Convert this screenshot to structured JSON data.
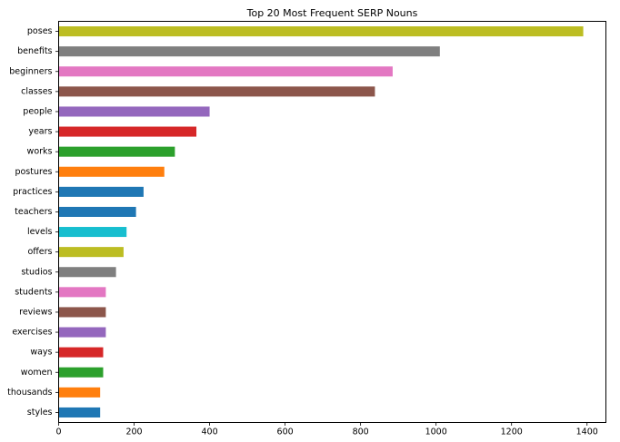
{
  "chart_data": {
    "type": "bar",
    "orientation": "horizontal",
    "title": "Top 20 Most Frequent SERP Nouns",
    "xlabel": "",
    "ylabel": "",
    "xlim": [
      0,
      1450
    ],
    "xticks": [
      0,
      200,
      400,
      600,
      800,
      1000,
      1200,
      1400
    ],
    "grid": false,
    "legend": "none",
    "categories": [
      "poses",
      "benefits",
      "beginners",
      "classes",
      "people",
      "years",
      "works",
      "postures",
      "practices",
      "teachers",
      "levels",
      "offers",
      "studios",
      "students",
      "reviews",
      "exercises",
      "ways",
      "women",
      "thousands",
      "styles"
    ],
    "values": [
      1390,
      1010,
      885,
      838,
      400,
      365,
      308,
      280,
      225,
      205,
      180,
      172,
      152,
      125,
      125,
      125,
      118,
      118,
      110,
      110
    ],
    "colors": [
      "#bcbd22",
      "#7f7f7f",
      "#e377c2",
      "#8c564b",
      "#9467bd",
      "#d62728",
      "#2ca02c",
      "#ff7f0e",
      "#1f77b4",
      "#1f77b4",
      "#17becf",
      "#bcbd22",
      "#7f7f7f",
      "#e377c2",
      "#8c564b",
      "#9467bd",
      "#d62728",
      "#2ca02c",
      "#ff7f0e",
      "#1f77b4"
    ]
  }
}
